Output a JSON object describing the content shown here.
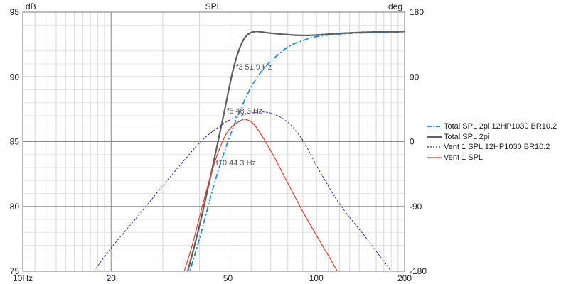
{
  "chart_data": {
    "type": "line",
    "title": "SPL",
    "x_scale": "log",
    "xlim": [
      10,
      200
    ],
    "x_ticks": [
      10,
      20,
      50,
      100,
      200
    ],
    "x_tick_labels": [
      "10Hz",
      "20",
      "50",
      "100",
      "200"
    ],
    "y_left": {
      "unit": "dB",
      "lim": [
        75,
        95
      ],
      "ticks": [
        75,
        80,
        85,
        90,
        95
      ],
      "tick_labels": [
        "75",
        "80",
        "85",
        "90",
        "95"
      ]
    },
    "y_right": {
      "unit": "deg",
      "lim": [
        -180,
        180
      ],
      "ticks": [
        -180,
        -90,
        0,
        90,
        180
      ],
      "tick_labels": [
        "-180",
        "-90",
        "0",
        "90",
        "180"
      ]
    },
    "grid": true,
    "legend_position": "right",
    "series": [
      {
        "name": "Total SPL 2pi 12HP1030 BR10.2",
        "axis": "left",
        "color": "#1e88e5",
        "style": "dashdot",
        "points": [
          [
            36.5,
            74.5
          ],
          [
            40,
            77.5
          ],
          [
            45,
            81.8
          ],
          [
            50,
            85.0
          ],
          [
            55,
            87.4
          ],
          [
            60,
            89.2
          ],
          [
            65,
            90.4
          ],
          [
            70,
            91.2
          ],
          [
            80,
            92.3
          ],
          [
            90,
            92.8
          ],
          [
            100,
            93.1
          ],
          [
            120,
            93.3
          ],
          [
            150,
            93.4
          ],
          [
            200,
            93.45
          ]
        ]
      },
      {
        "name": "Total SPL 2pi",
        "axis": "left",
        "color": "#606060",
        "style": "solid",
        "points": [
          [
            36,
            74.5
          ],
          [
            40,
            78.5
          ],
          [
            44.3,
            83.0
          ],
          [
            48.3,
            87.0
          ],
          [
            51.9,
            90.4
          ],
          [
            55,
            92.3
          ],
          [
            58,
            93.2
          ],
          [
            62,
            93.5
          ],
          [
            68,
            93.4
          ],
          [
            80,
            93.25
          ],
          [
            95,
            93.2
          ],
          [
            120,
            93.35
          ],
          [
            150,
            93.45
          ],
          [
            200,
            93.5
          ]
        ]
      },
      {
        "name": "Vent 1 SPL 12HP1030 BR10.2",
        "axis": "left",
        "color": "#2a2ab8",
        "style": "dashed",
        "points": [
          [
            17.5,
            75
          ],
          [
            20,
            76.8
          ],
          [
            25,
            79.4
          ],
          [
            30,
            81.6
          ],
          [
            35,
            83.4
          ],
          [
            40,
            84.9
          ],
          [
            45,
            85.9
          ],
          [
            50,
            86.6
          ],
          [
            55,
            87.0
          ],
          [
            62,
            87.25
          ],
          [
            70,
            87.2
          ],
          [
            80,
            86.5
          ],
          [
            90,
            85.1
          ],
          [
            100,
            83.2
          ],
          [
            120,
            80.2
          ],
          [
            150,
            77.4
          ],
          [
            180,
            75
          ]
        ]
      },
      {
        "name": "Vent 1 SPL",
        "axis": "left",
        "color": "#e53935",
        "style": "solid",
        "points": [
          [
            35.5,
            75
          ],
          [
            38,
            77.2
          ],
          [
            42,
            81.0
          ],
          [
            46,
            84.0
          ],
          [
            50,
            85.8
          ],
          [
            55,
            86.6
          ],
          [
            58,
            86.7
          ],
          [
            62,
            86.2
          ],
          [
            70,
            84.3
          ],
          [
            80,
            81.8
          ],
          [
            90,
            79.6
          ],
          [
            100,
            77.8
          ],
          [
            110,
            76.2
          ],
          [
            118,
            75
          ]
        ]
      }
    ],
    "annotations": [
      {
        "text": "f3 51.9 Hz",
        "x": 51.9,
        "y": 90.4
      },
      {
        "text": "f6 48.3 Hz",
        "x": 48.3,
        "y": 87.0
      },
      {
        "text": "f10 44.3 Hz",
        "x": 44.3,
        "y": 83.0
      }
    ]
  }
}
